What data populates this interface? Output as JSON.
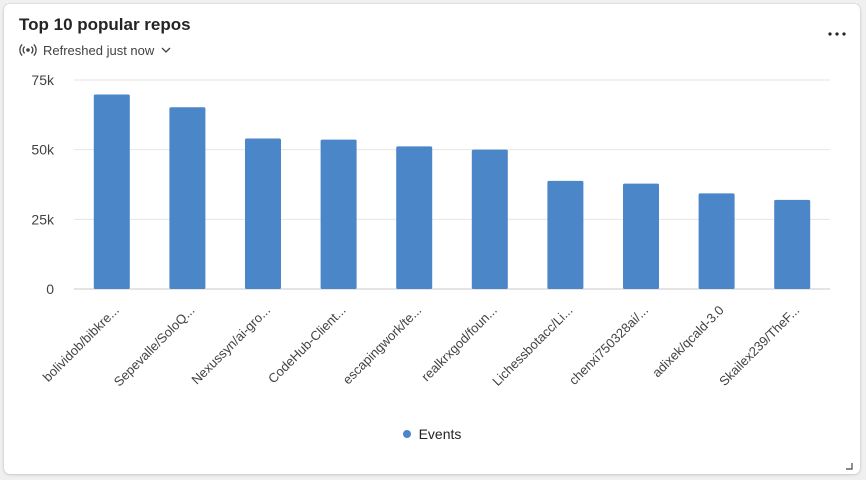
{
  "card": {
    "title": "Top 10 popular repos",
    "refresh_label": "Refreshed just now",
    "refresh_icon": "broadcast-icon",
    "more_icon": "more-horizontal-icon"
  },
  "chart_data": {
    "type": "bar",
    "title": "Top 10 popular repos",
    "xlabel": "",
    "ylabel": "",
    "ylim": [
      0,
      75000
    ],
    "yticks": [
      0,
      25000,
      50000,
      75000
    ],
    "ytick_labels": [
      "0",
      "25k",
      "50k",
      "75k"
    ],
    "grid": true,
    "legend": "bottom",
    "color": "#4a86c8",
    "categories": [
      "bolividob/bibkre...",
      "Sepevalle/SoloQ...",
      "Nexussyn/ai-gro...",
      "CodeHub-Client...",
      "escapingwork/te...",
      "realkrxgod/foun...",
      "Lichessbotacc/Li...",
      "chenxi750328ai/...",
      "adixek/qcald-3.0",
      "Skailex239/TheF..."
    ],
    "series": [
      {
        "name": "Events",
        "values": [
          69800,
          65200,
          54000,
          53600,
          51200,
          50000,
          38800,
          37800,
          34300,
          32000
        ]
      }
    ]
  }
}
